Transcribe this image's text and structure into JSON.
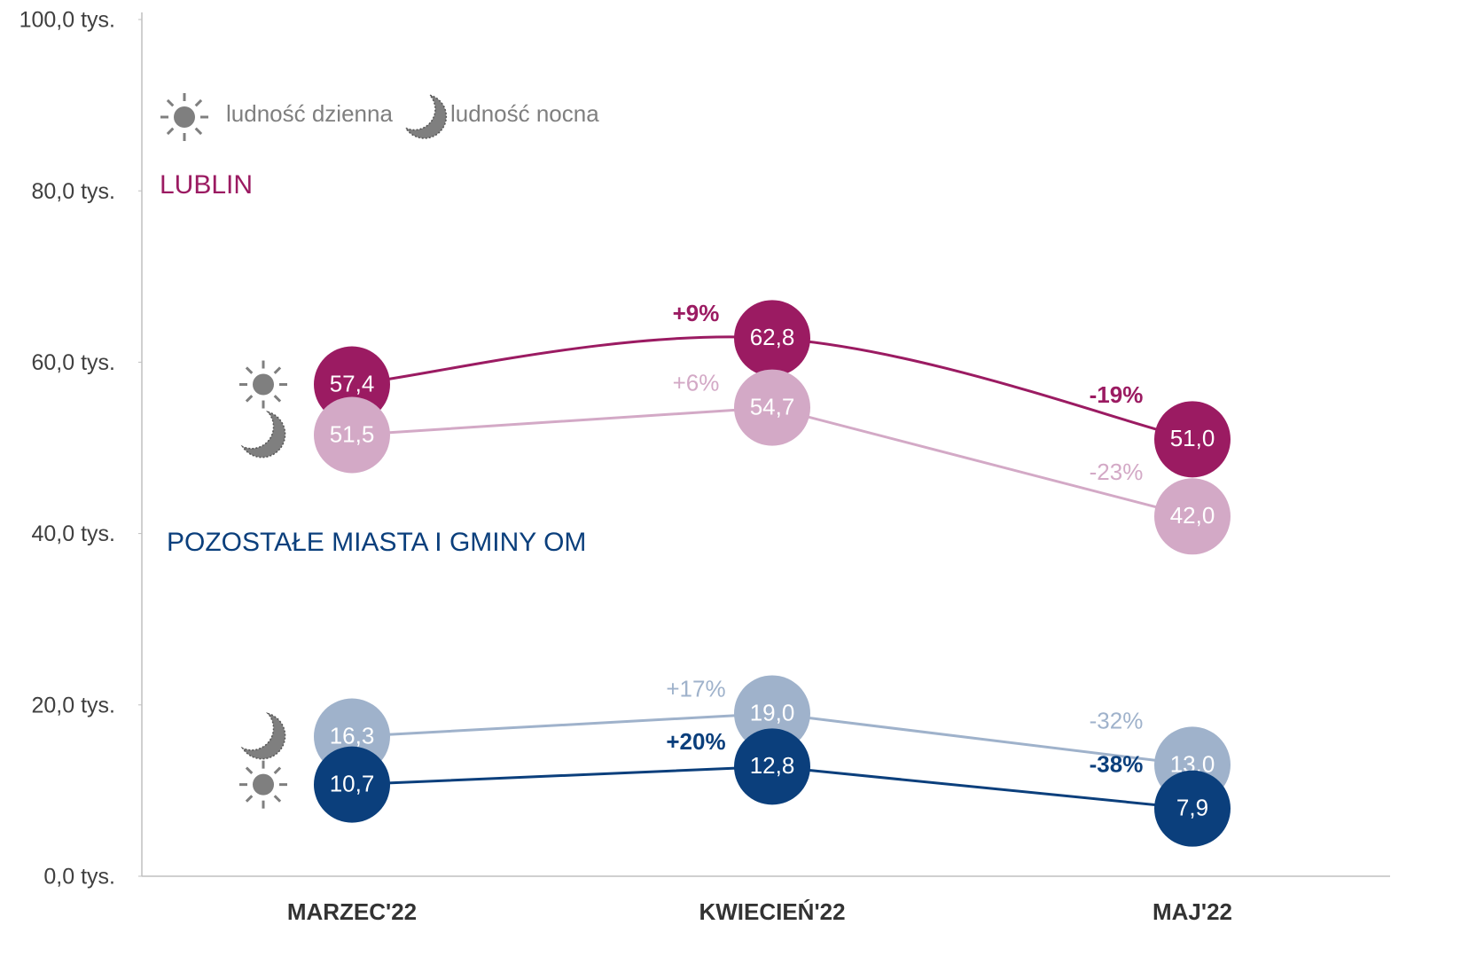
{
  "chart_data": {
    "type": "line",
    "categories": [
      "MARZEC'22",
      "KWIECIEŃ'22",
      "MAJ'22"
    ],
    "ylim": [
      0,
      100
    ],
    "yticks": [
      {
        "value": 0,
        "label": "0,0 tys."
      },
      {
        "value": 20,
        "label": "20,0 tys."
      },
      {
        "value": 40,
        "label": "40,0 tys."
      },
      {
        "value": 60,
        "label": "60,0 tys."
      },
      {
        "value": 80,
        "label": "80,0 tys."
      },
      {
        "value": 100,
        "label": "100,0 tys."
      }
    ],
    "legend": [
      {
        "label": "ludność dzienna",
        "icon": "sun"
      },
      {
        "label": "ludność nocna",
        "icon": "moon"
      }
    ],
    "groups": [
      {
        "name": "LUBLIN",
        "color": "#9b1b62"
      },
      {
        "name": "POZOSTAŁE MIASTA I GMINY OM",
        "color": "#0b3f7c"
      }
    ],
    "series": [
      {
        "icon": "sun",
        "color": "#9b1b62",
        "label_color": "#9b1b62",
        "smooth": true,
        "values": [
          57.4,
          62.8,
          51.0
        ],
        "value_labels": [
          "57,4",
          "62,8",
          "51,0"
        ],
        "changes": [
          null,
          "+9%",
          "-19%"
        ]
      },
      {
        "icon": "moon",
        "color": "#d3a9c6",
        "label_color": "#d3a9c6",
        "smooth": false,
        "values": [
          51.5,
          54.7,
          42.0
        ],
        "value_labels": [
          "51,5",
          "54,7",
          "42,0"
        ],
        "changes": [
          null,
          "+6%",
          "-23%"
        ]
      },
      {
        "icon": "moon",
        "color": "#9fb2cb",
        "label_color": "#9fb2cb",
        "smooth": false,
        "values": [
          16.3,
          19.0,
          13.0
        ],
        "value_labels": [
          "16,3",
          "19,0",
          "13,0"
        ],
        "changes": [
          null,
          "+17%",
          "-32%"
        ]
      },
      {
        "icon": "sun",
        "color": "#0b3f7c",
        "label_color": "#0b3f7c",
        "smooth": false,
        "values": [
          10.7,
          12.8,
          7.9
        ],
        "value_labels": [
          "10,7",
          "12,8",
          "7,9"
        ],
        "changes": [
          null,
          "+20%",
          "-38%"
        ]
      }
    ]
  }
}
